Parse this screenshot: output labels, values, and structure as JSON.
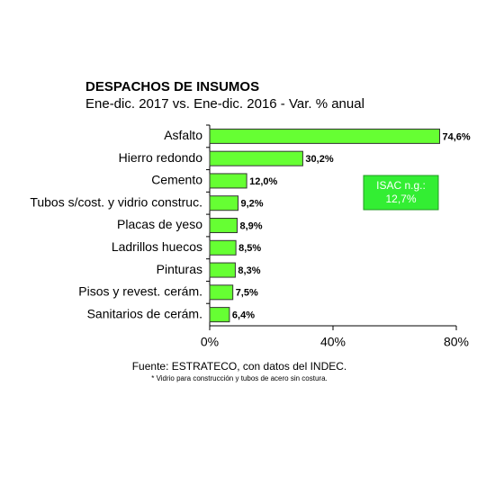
{
  "chart_data": {
    "type": "bar",
    "orientation": "horizontal",
    "title": "DESPACHOS DE INSUMOS",
    "subtitle": "Ene-dic. 2017 vs. Ene-dic. 2016 - Var. % anual",
    "categories": [
      "Asfalto",
      "Hierro redondo",
      "Cemento",
      "Tubos s/cost. y vidrio construc.",
      "Placas de yeso",
      "Ladrillos huecos",
      "Pinturas",
      "Pisos y revest. cerám.",
      "Sanitarios de cerám."
    ],
    "values": [
      74.6,
      30.2,
      12.0,
      9.2,
      8.9,
      8.5,
      8.3,
      7.5,
      6.4
    ],
    "value_labels": [
      "74,6%",
      "30,2%",
      "12,0%",
      "9,2%",
      "8,9%",
      "8,5%",
      "8,3%",
      "7,5%",
      "6,4%"
    ],
    "color": "#66ff33",
    "xlim": [
      0,
      80
    ],
    "xticks": [
      {
        "value": 0,
        "label": "0%"
      },
      {
        "value": 40,
        "label": "40%"
      },
      {
        "value": 80,
        "label": "80%"
      }
    ],
    "annotation": [
      "ISAC n.g.:",
      "12,7%"
    ],
    "source": "Fuente: ESTRATECO, con datos del INDEC.",
    "note": "* Vidrio para construcción y tubos de acero sin costura."
  }
}
